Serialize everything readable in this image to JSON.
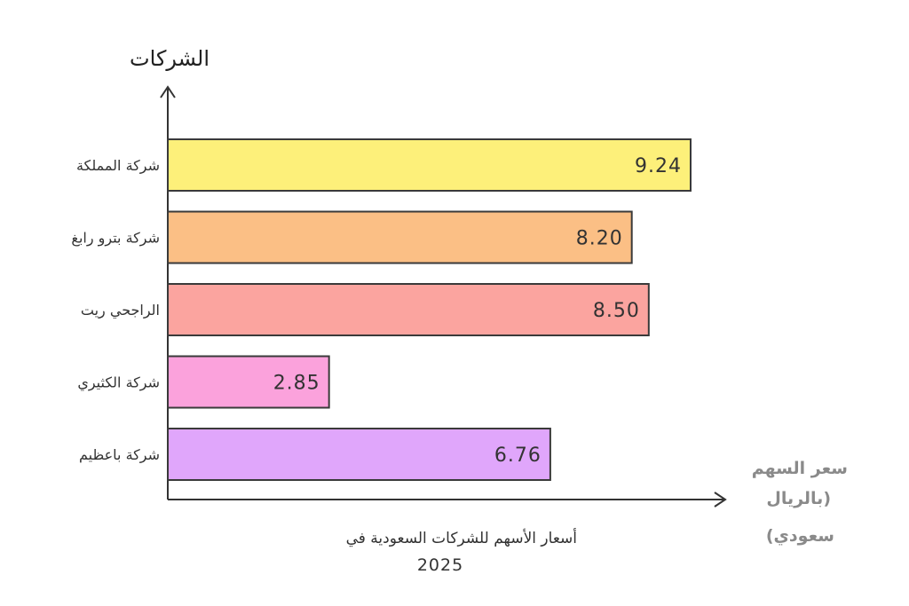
{
  "chart_data": {
    "type": "bar",
    "orientation": "horizontal",
    "categories": [
      "شركة المملكة",
      "شركة بترو رابغ",
      "الراجحي ريت",
      "شركة الكثيري",
      "شركة باعظيم"
    ],
    "values": [
      9.24,
      8.2,
      8.5,
      2.85,
      6.76
    ],
    "value_labels": [
      "9.24",
      "8.20",
      "8.50",
      "2.85",
      "6.76"
    ],
    "colors": [
      "#fdf07a",
      "#fbbf85",
      "#fba49f",
      "#fba2dc",
      "#e0a6fb"
    ],
    "xlabel": [
      "سعر السهم",
      "بالريال)",
      "(سعودي"
    ],
    "ylabel": "الشركات",
    "caption": {
      "line1": "أسعار الأسهم للشركات السعودية في",
      "line2": "2025"
    },
    "xlim": [
      0,
      10
    ],
    "grid": false,
    "legend": "none"
  }
}
